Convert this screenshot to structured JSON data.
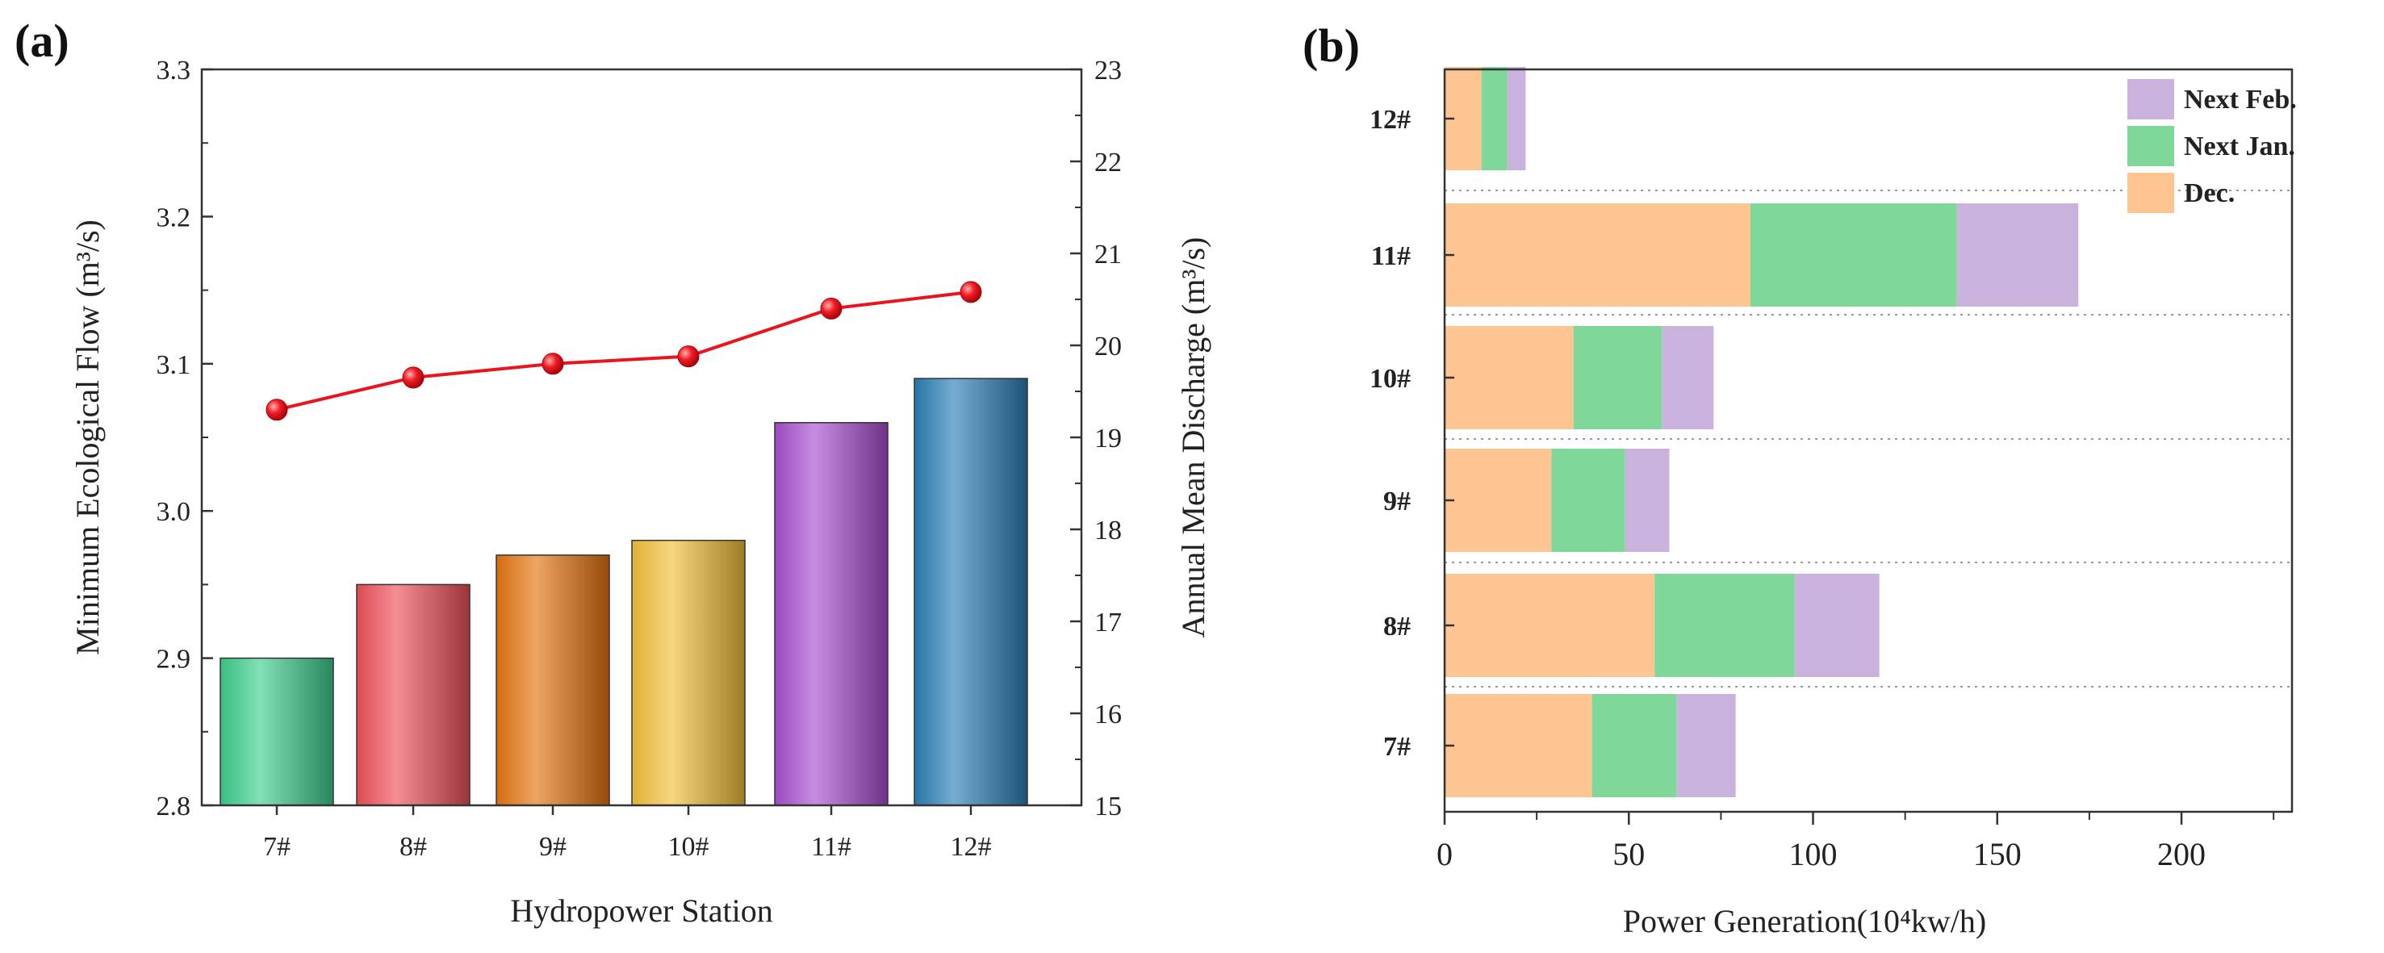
{
  "chart_data": [
    {
      "type": "bar",
      "panel_label": "(a)",
      "xlabel": "Hydropower Station",
      "ylabel": "Minimum Ecological Flow (m³/s)",
      "y2label": "Annual Mean Discharge (m³/s)",
      "categories": [
        "7#",
        "8#",
        "9#",
        "10#",
        "11#",
        "12#"
      ],
      "bar_values": [
        2.9,
        2.95,
        2.97,
        2.98,
        3.06,
        3.09
      ],
      "bar_colors": [
        "#3ecf8e",
        "#f0505a",
        "#e5750f",
        "#f3c03a",
        "#a94fd0",
        "#2b7fb6"
      ],
      "ylim": [
        2.8,
        3.3
      ],
      "yticks": [
        "2.8",
        "2.9",
        "3.0",
        "3.1",
        "3.2",
        "3.3"
      ],
      "line": {
        "name": "Annual Mean Discharge",
        "axis": "right",
        "values": [
          19.3,
          19.65,
          19.8,
          19.88,
          20.4,
          20.58
        ],
        "color": "#e8141e"
      },
      "y2lim": [
        15,
        23
      ],
      "y2ticks": [
        "15",
        "16",
        "17",
        "18",
        "19",
        "20",
        "21",
        "22",
        "23"
      ]
    },
    {
      "type": "stacked_bar_horizontal",
      "panel_label": "(b)",
      "xlabel": "Power Generation(10⁴kw/h)",
      "ylabel": "",
      "categories": [
        "12#",
        "11#",
        "10#",
        "9#",
        "8#",
        "7#"
      ],
      "series": [
        {
          "name": "Dec.",
          "color": "#fcc591",
          "values": [
            10,
            83,
            35,
            29,
            57,
            40
          ]
        },
        {
          "name": "Next Jan.",
          "color": "#7fd89a",
          "values": [
            7,
            56,
            24,
            20,
            38,
            23
          ]
        },
        {
          "name": "Next Feb.",
          "color": "#c9b2dc",
          "values": [
            5,
            33,
            14,
            12,
            23,
            16
          ]
        }
      ],
      "legend_order": [
        "Next Feb.",
        "Next Jan.",
        "Dec."
      ],
      "legend_position": "top-right",
      "xlim": [
        0,
        230
      ],
      "xticks": [
        "0",
        "50",
        "100",
        "150",
        "200"
      ]
    }
  ]
}
